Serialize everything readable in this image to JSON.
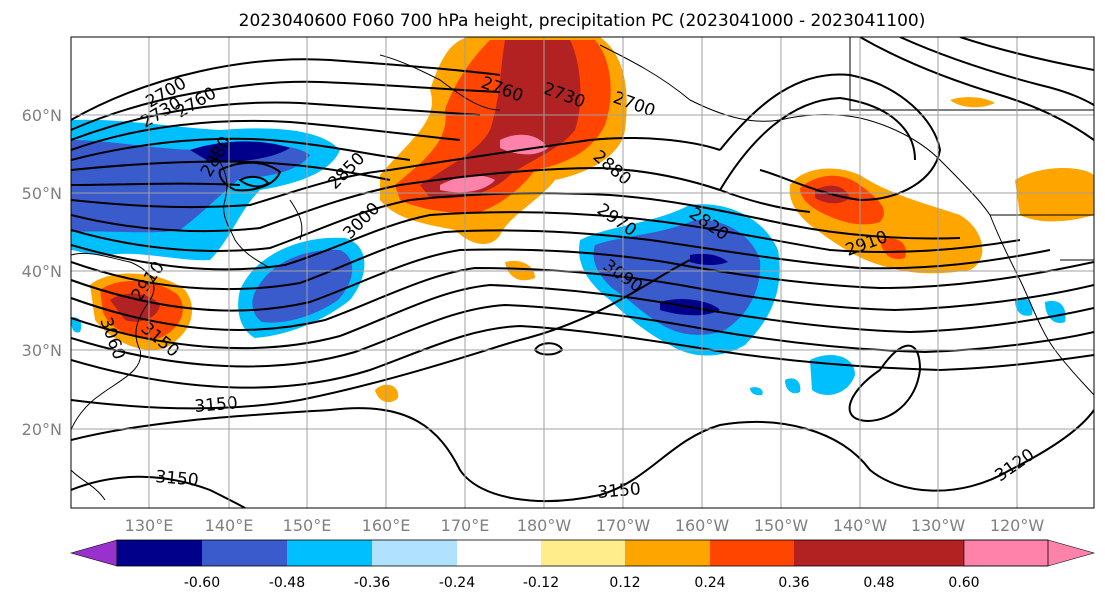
{
  "title": "2023040600 F060 700 hPa height, precipitation PC (2023041000 - 2023041100)",
  "map": {
    "lat_labels": [
      "60°N",
      "50°N",
      "40°N",
      "30°N",
      "20°N"
    ],
    "lon_labels": [
      "130°E",
      "140°E",
      "150°E",
      "160°E",
      "170°E",
      "180°W",
      "170°W",
      "160°W",
      "150°W",
      "140°W",
      "130°W",
      "120°W"
    ],
    "contour_labels": [
      "2700",
      "2730",
      "2760",
      "2760",
      "2730",
      "2700",
      "2850",
      "2880",
      "2880",
      "3000",
      "2970",
      "2820",
      "3090",
      "2910",
      "3150",
      "3150",
      "3150",
      "3120",
      "2910",
      "3060",
      "3150"
    ]
  },
  "colorbar": {
    "tick_labels": [
      "-0.60",
      "-0.48",
      "-0.36",
      "-0.24",
      "-0.12",
      "0.12",
      "0.24",
      "0.36",
      "0.48",
      "0.60"
    ],
    "colors": [
      "#9932cc",
      "#00008b",
      "#3a5bcc",
      "#00bfff",
      "#b0e2ff",
      "#ffffff",
      "#ffec8b",
      "#ffa500",
      "#ff4500",
      "#b22222",
      "#ff82ab"
    ]
  }
}
